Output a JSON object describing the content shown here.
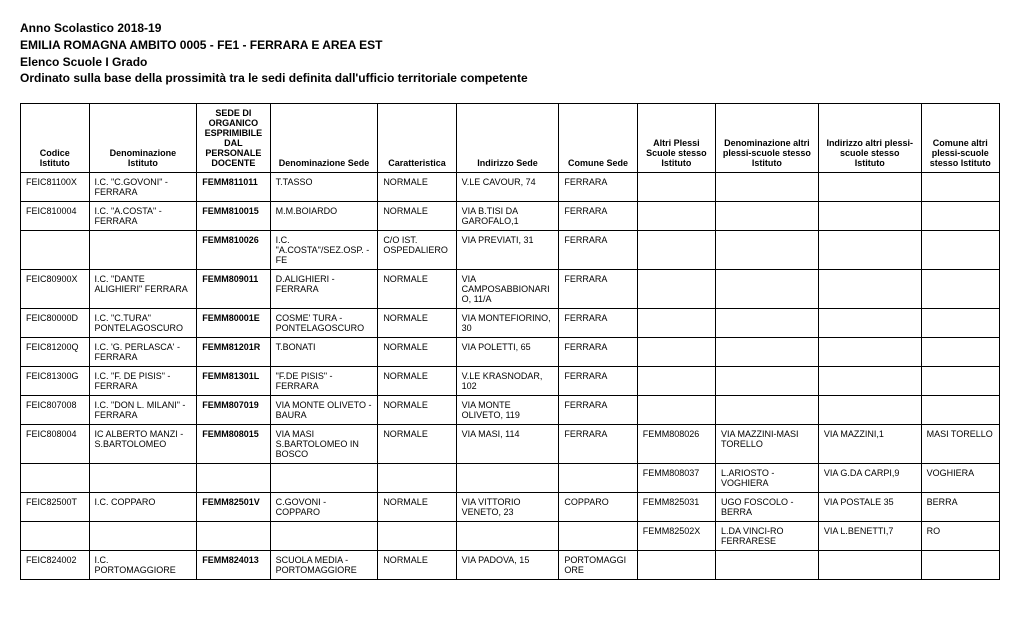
{
  "header": {
    "line1": "Anno Scolastico 2018-19",
    "line2": "EMILIA ROMAGNA AMBITO 0005 - FE1 - FERRARA E AREA EST",
    "line3": "Elenco Scuole I Grado",
    "line4": "Ordinato sulla base della prossimità tra le sedi definita dall'ufficio territoriale competente"
  },
  "table": {
    "columns": [
      "Codice Istituto",
      "Denominazione Istituto",
      "SEDE DI ORGANICO ESPRIMIBILE DAL PERSONALE DOCENTE",
      "Denominazione Sede",
      "Caratteristica",
      "Indirizzo Sede",
      "Comune Sede",
      "Altri Plessi Scuole stesso Istituto",
      "Denominazione altri plessi-scuole stesso Istituto",
      "Indirizzo altri plessi-scuole stesso Istituto",
      "Comune altri plessi-scuole stesso Istituto"
    ],
    "bold_col_index": 2,
    "rows": [
      [
        "FEIC81100X",
        "I.C. \"C.GOVONI\" - FERRARA",
        "FEMM811011",
        "T.TASSO",
        "NORMALE",
        "V.LE CAVOUR, 74",
        "FERRARA",
        "",
        "",
        "",
        ""
      ],
      [
        "FEIC810004",
        "I.C. \"A.COSTA\" - FERRARA",
        "FEMM810015",
        "M.M.BOIARDO",
        "NORMALE",
        "VIA B.TISI DA GAROFALO,1",
        "FERRARA",
        "",
        "",
        "",
        ""
      ],
      [
        "",
        "",
        "FEMM810026",
        "I.C. \"A.COSTA\"/SEZ.OSP. - FE",
        "C/O IST. OSPEDALIERO",
        "VIA PREVIATI, 31",
        "FERRARA",
        "",
        "",
        "",
        ""
      ],
      [
        "FEIC80900X",
        "I.C. \"DANTE ALIGHIERI\" FERRARA",
        "FEMM809011",
        "D.ALIGHIERI - FERRARA",
        "NORMALE",
        "VIA CAMPOSABBIONARIO, 11/A",
        "FERRARA",
        "",
        "",
        "",
        ""
      ],
      [
        "FEIC80000D",
        "I.C. \"C.TURA\" PONTELAGOSCURO",
        "FEMM80001E",
        "COSME' TURA - PONTELAGOSCURO",
        "NORMALE",
        "VIA MONTEFIORINO, 30",
        "FERRARA",
        "",
        "",
        "",
        ""
      ],
      [
        "FEIC81200Q",
        "I.C. 'G. PERLASCA' - FERRARA",
        "FEMM81201R",
        "T.BONATI",
        "NORMALE",
        "VIA POLETTI, 65",
        "FERRARA",
        "",
        "",
        "",
        ""
      ],
      [
        "FEIC81300G",
        "I.C. \"F. DE PISIS\" - FERRARA",
        "FEMM81301L",
        "\"F.DE PISIS\" - FERRARA",
        "NORMALE",
        "V.LE KRASNODAR, 102",
        "FERRARA",
        "",
        "",
        "",
        ""
      ],
      [
        "FEIC807008",
        "I.C. \"DON L. MILANI\" - FERRARA",
        "FEMM807019",
        "VIA MONTE OLIVETO - BAURA",
        "NORMALE",
        "VIA MONTE OLIVETO, 119",
        "FERRARA",
        "",
        "",
        "",
        ""
      ],
      [
        "FEIC808004",
        "IC ALBERTO MANZI - S.BARTOLOMEO",
        "FEMM808015",
        "VIA MASI S.BARTOLOMEO IN BOSCO",
        "NORMALE",
        "VIA MASI, 114",
        "FERRARA",
        "FEMM808026",
        "VIA MAZZINI-MASI TORELLO",
        "VIA MAZZINI,1",
        "MASI TORELLO"
      ],
      [
        "",
        "",
        "",
        "",
        "",
        "",
        "",
        "FEMM808037",
        "L.ARIOSTO - VOGHIERA",
        "VIA G.DA CARPI,9",
        "VOGHIERA"
      ],
      [
        "FEIC82500T",
        "I.C. COPPARO",
        "FEMM82501V",
        "C.GOVONI - COPPARO",
        "NORMALE",
        "VIA VITTORIO VENETO, 23",
        "COPPARO",
        "FEMM825031",
        "UGO FOSCOLO - BERRA",
        "VIA POSTALE 35",
        "BERRA"
      ],
      [
        "",
        "",
        "",
        "",
        "",
        "",
        "",
        "FEMM82502X",
        "L.DA VINCI-RO FERRARESE",
        "VIA L.BENETTI,7",
        "RO"
      ],
      [
        "FEIC824002",
        "I.C. PORTOMAGGIORE",
        "FEMM824013",
        "SCUOLA MEDIA - PORTOMAGGIORE",
        "NORMALE",
        "VIA PADOVA, 15",
        "PORTOMAGGIORE",
        "",
        "",
        "",
        ""
      ]
    ],
    "header_bg": "#ffffff",
    "border_color": "#000000",
    "font_size_cell": 9,
    "font_size_header": 9
  }
}
